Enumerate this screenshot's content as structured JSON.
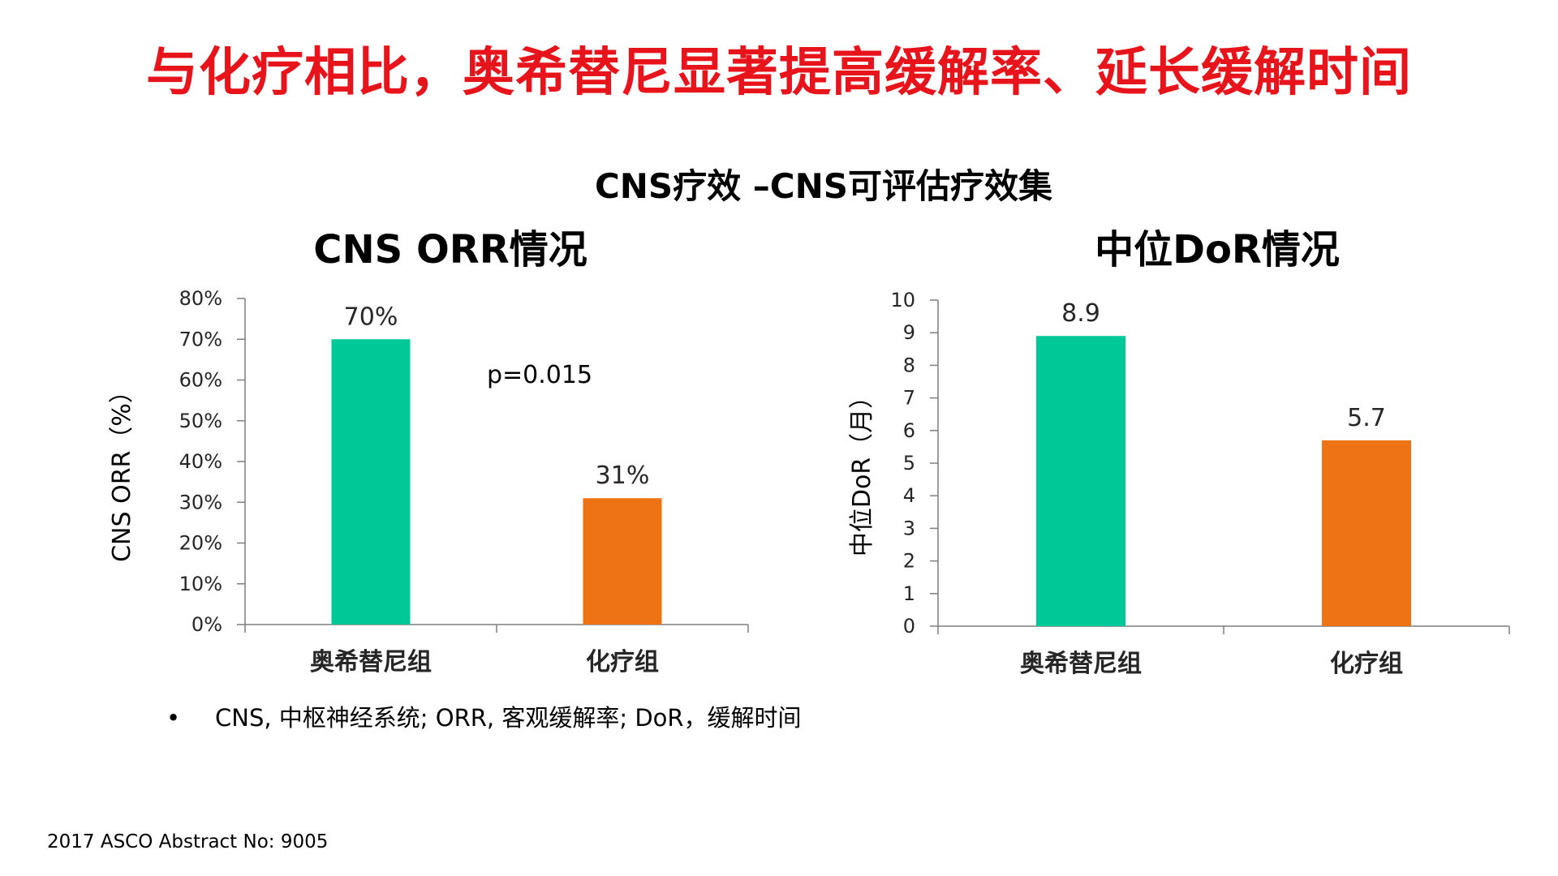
{
  "title": "与化疗相比，奥希替尼显著提高缓解率、延长缓解时间",
  "subtitle": "CNS疗效 –CNS可评估疗效集",
  "footnote": "CNS, 中枢神经系统; ORR, 客观缓解率; DoR，缓解时间",
  "footnote_bullet": "•",
  "source": "2017 ASCO Abstract No: 9005",
  "colors": {
    "title": "#e8141b",
    "osimertinib": "#00c896",
    "chemo": "#ee7314"
  },
  "chart_data": [
    {
      "type": "bar",
      "title": "CNS ORR情况",
      "ylabel": "CNS ORR（%）",
      "categories": [
        "奥希替尼组",
        "化疗组"
      ],
      "values": [
        70,
        31
      ],
      "value_labels": [
        "70%",
        "31%"
      ],
      "ylim": [
        0,
        80
      ],
      "yticks": [
        0,
        10,
        20,
        30,
        40,
        50,
        60,
        70,
        80
      ],
      "ytick_labels": [
        "0%",
        "10%",
        "20%",
        "30%",
        "40%",
        "50%",
        "60%",
        "70%",
        "80%"
      ],
      "annotation": "p=0.015",
      "grid": false
    },
    {
      "type": "bar",
      "title": "中位DoR情况",
      "ylabel": "中位DoR（月）",
      "categories": [
        "奥希替尼组",
        "化疗组"
      ],
      "values": [
        8.9,
        5.7
      ],
      "value_labels": [
        "8.9",
        "5.7"
      ],
      "ylim": [
        0,
        10
      ],
      "yticks": [
        0,
        1,
        2,
        3,
        4,
        5,
        6,
        7,
        8,
        9,
        10
      ],
      "ytick_labels": [
        "0",
        "1",
        "2",
        "3",
        "4",
        "5",
        "6",
        "7",
        "8",
        "9",
        "10"
      ],
      "grid": false
    }
  ]
}
